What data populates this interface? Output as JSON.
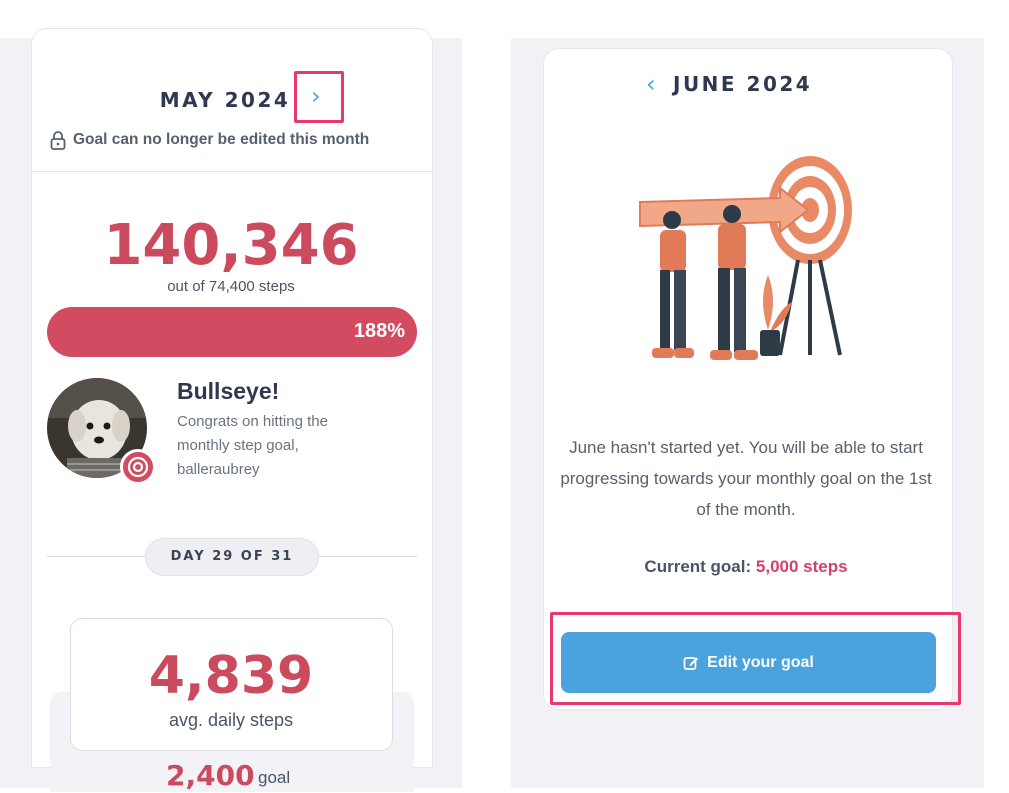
{
  "left": {
    "month_title": "MAY 2024",
    "next_chevron": "›",
    "lock_notice": "Goal can no longer be edited this month",
    "total_steps": "140,346",
    "out_of": "out of 74,400 steps",
    "progress": {
      "label": "188%",
      "fraction": 1.0,
      "color": "#d24b60"
    },
    "achievement": {
      "title": "Bullseye!",
      "text": "Congrats on hitting the monthly step goal, balleraubrey"
    },
    "day_label": "DAY 29 OF 31",
    "avg_steps": "4,839",
    "avg_label": "avg. daily steps",
    "goal_number": "2,400",
    "goal_label": "goal"
  },
  "right": {
    "prev_chevron": "‹",
    "month_title": "JUNE 2024",
    "notice": "June hasn't started yet. You will be able to start progressing towards your monthly goal on the 1st of the month.",
    "current_goal_label": "Current goal:",
    "current_goal_value": "5,000 steps",
    "edit_button_label": "Edit your goal"
  },
  "colors": {
    "accent_red": "#cc4a5e",
    "accent_blue": "#4aa3dc",
    "highlight": "#e8386c"
  },
  "icons": [
    "lock-icon",
    "chevron-right-icon",
    "chevron-left-icon",
    "target-icon",
    "edit-icon"
  ]
}
